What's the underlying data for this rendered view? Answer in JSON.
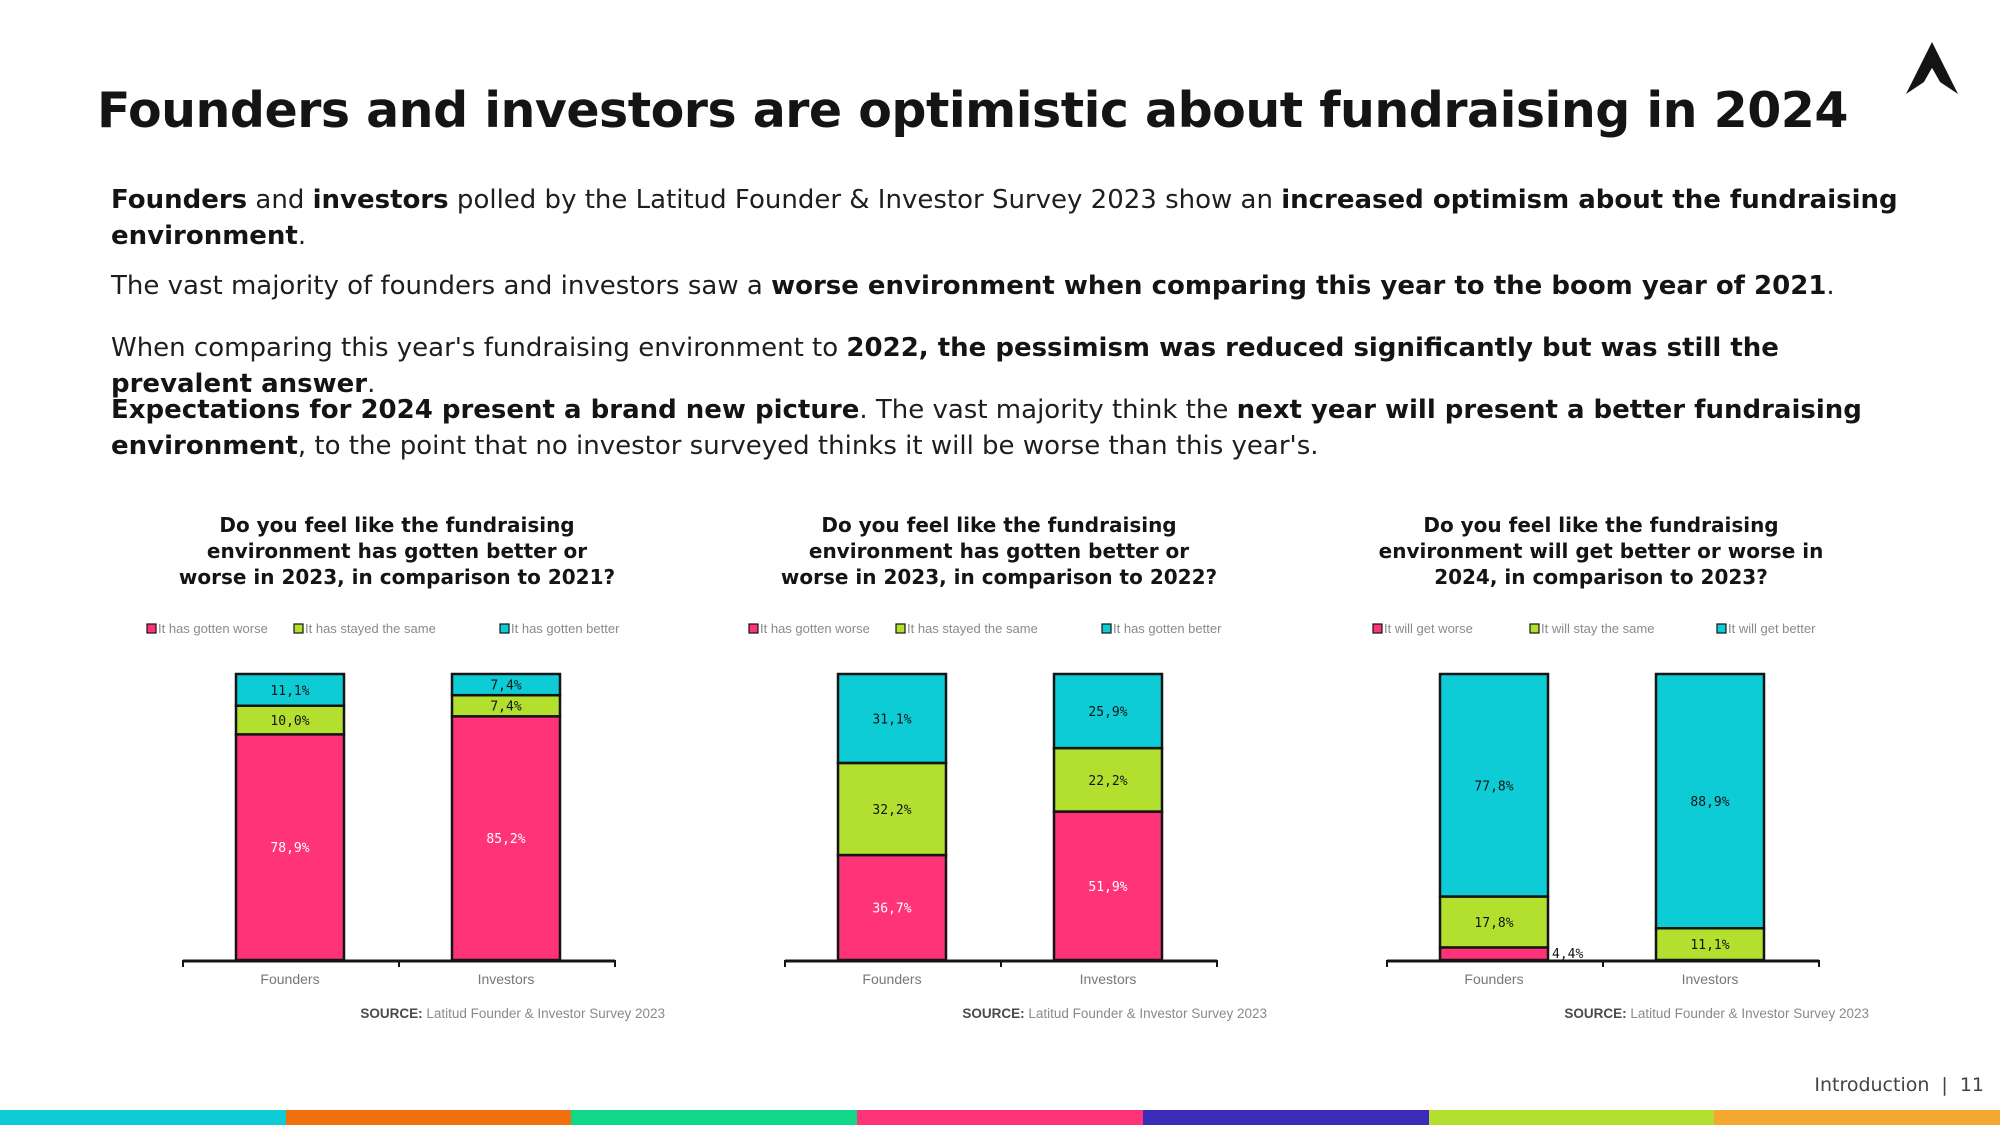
{
  "title": "Founders and investors are optimistic about fundraising in 2024",
  "paragraphs": [
    [
      {
        "t": "Founders",
        "b": true
      },
      {
        "t": " and ",
        "b": false
      },
      {
        "t": "investors",
        "b": true
      },
      {
        "t": " polled by the Latitud Founder & Investor Survey 2023 show an ",
        "b": false
      },
      {
        "t": "increased optimism about the fundraising environment",
        "b": true
      },
      {
        "t": ".",
        "b": false
      }
    ],
    [
      {
        "t": "The vast majority of founders and investors saw a ",
        "b": false
      },
      {
        "t": "worse environment when comparing this year to the boom year of 2021",
        "b": true
      },
      {
        "t": ".",
        "b": false
      }
    ],
    [
      {
        "t": "When comparing this year's fundraising environment to ",
        "b": false
      },
      {
        "t": "2022, the pessimism was reduced significantly but was still the prevalent answer",
        "b": true
      },
      {
        "t": ".",
        "b": false
      }
    ],
    [
      {
        "t": "Expectations for 2024 present a brand new picture",
        "b": true
      },
      {
        "t": ". The vast majority think the ",
        "b": false
      },
      {
        "t": "next year will present a better fundraising environment",
        "b": true
      },
      {
        "t": ", to the point that no investor surveyed thinks it will be worse than this year's.",
        "b": false
      }
    ]
  ],
  "source": {
    "label": "SOURCE:",
    "text": "Latitud Founder & Investor Survey 2023"
  },
  "footer": {
    "section": "Introduction",
    "separator": "|",
    "page": "11"
  },
  "colors": {
    "worse": "#ff3377",
    "same": "#b3e02e",
    "better": "#0dccd6",
    "outline": "#141414",
    "stripes": [
      "#0dccd6",
      "#f07010",
      "#10d888",
      "#ff3377",
      "#3a2cb8",
      "#b3e02e",
      "#f5a830"
    ]
  },
  "logo_icon": "mountain-peak-logo-icon",
  "chart_data": [
    {
      "type": "bar",
      "stacked": true,
      "title": "Do you feel like the fundraising\nenvironment has gotten better or\nworse in 2023, in comparison to 2021?",
      "categories": [
        "Founders",
        "Investors"
      ],
      "ylim": [
        0,
        100
      ],
      "series": [
        {
          "name": "It has gotten worse",
          "color_key": "worse",
          "values": [
            78.9,
            85.2
          ],
          "labels": [
            "78,9%",
            "85,2%"
          ]
        },
        {
          "name": "It has stayed the same",
          "color_key": "same",
          "values": [
            10.0,
            7.4
          ],
          "labels": [
            "10,0%",
            "7,4%"
          ]
        },
        {
          "name": "It has gotten better",
          "color_key": "better",
          "values": [
            11.1,
            7.4
          ],
          "labels": [
            "11,1%",
            "7,4%"
          ]
        }
      ],
      "legend_position": "top"
    },
    {
      "type": "bar",
      "stacked": true,
      "title": "Do you feel like the fundraising\nenvironment has gotten better or\nworse in 2023, in comparison to 2022?",
      "categories": [
        "Founders",
        "Investors"
      ],
      "ylim": [
        0,
        100
      ],
      "series": [
        {
          "name": "It has gotten worse",
          "color_key": "worse",
          "values": [
            36.7,
            51.9
          ],
          "labels": [
            "36,7%",
            "51,9%"
          ]
        },
        {
          "name": "It has stayed the same",
          "color_key": "same",
          "values": [
            32.2,
            22.2
          ],
          "labels": [
            "32,2%",
            "22,2%"
          ]
        },
        {
          "name": "It has gotten better",
          "color_key": "better",
          "values": [
            31.1,
            25.9
          ],
          "labels": [
            "31,1%",
            "25,9%"
          ]
        }
      ],
      "legend_position": "top"
    },
    {
      "type": "bar",
      "stacked": true,
      "title": "Do you feel like the fundraising\nenvironment will get better or worse in\n2024, in comparison to 2023?",
      "categories": [
        "Founders",
        "Investors"
      ],
      "ylim": [
        0,
        100
      ],
      "series": [
        {
          "name": "It will get worse",
          "color_key": "worse",
          "values": [
            4.4,
            0
          ],
          "labels": [
            "4,4%",
            ""
          ]
        },
        {
          "name": "It will stay the same",
          "color_key": "same",
          "values": [
            17.8,
            11.1
          ],
          "labels": [
            "17,8%",
            "11,1%"
          ]
        },
        {
          "name": "It will get better",
          "color_key": "better",
          "values": [
            77.8,
            88.9
          ],
          "labels": [
            "77,8%",
            "88,9%"
          ]
        }
      ],
      "legend_position": "top"
    }
  ]
}
